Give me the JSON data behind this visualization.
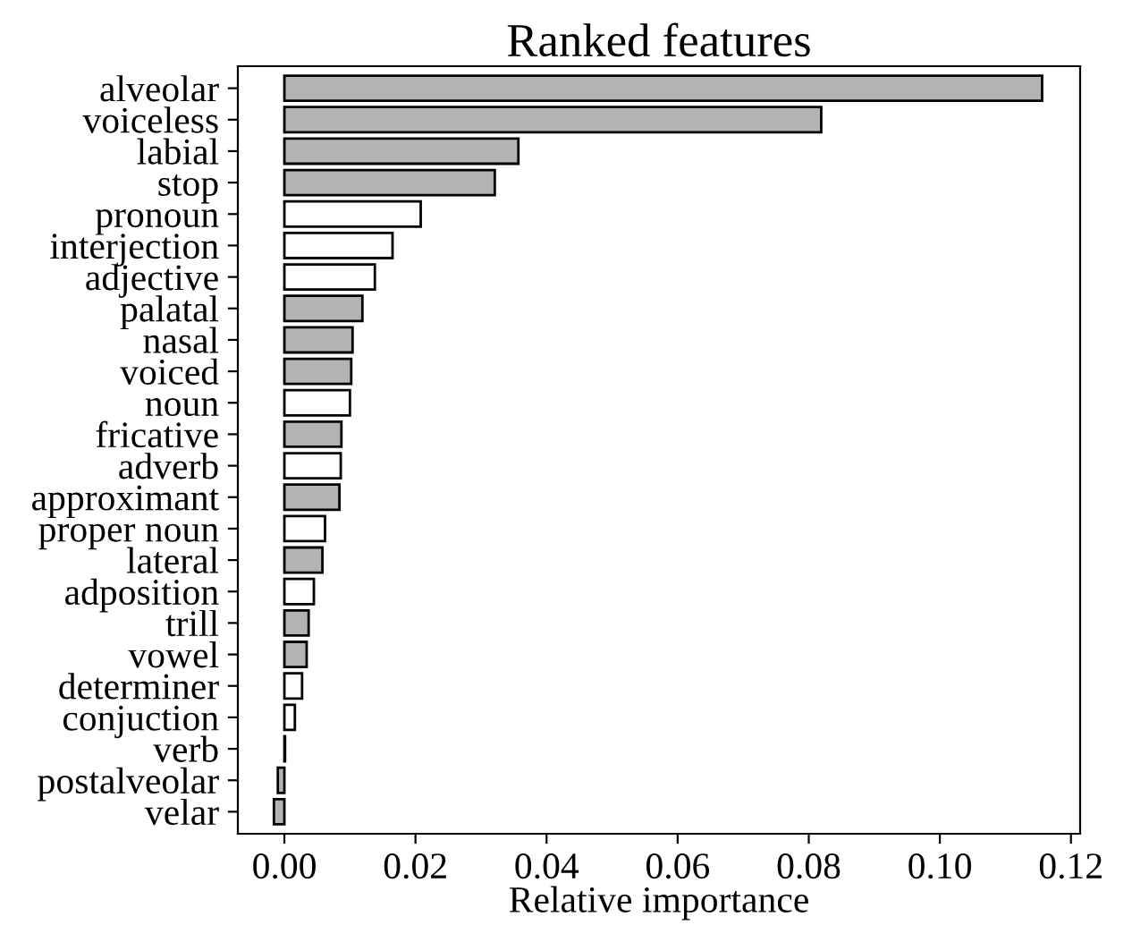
{
  "chart_data": {
    "type": "bar",
    "orientation": "horizontal",
    "title": "Ranked features",
    "xlabel": "Relative importance",
    "categories": [
      "alveolar",
      "voiceless",
      "labial",
      "stop",
      "pronoun",
      "interjection",
      "adjective",
      "palatal",
      "nasal",
      "voiced",
      "noun",
      "fricative",
      "adverb",
      "approximant",
      "proper noun",
      "lateral",
      "adposition",
      "trill",
      "vowel",
      "determiner",
      "conjuction",
      "verb",
      "postalveolar",
      "velar"
    ],
    "values": [
      0.1156,
      0.0819,
      0.0357,
      0.0321,
      0.0208,
      0.0165,
      0.0138,
      0.0119,
      0.0104,
      0.0102,
      0.01,
      0.0087,
      0.0086,
      0.0084,
      0.0062,
      0.0058,
      0.0045,
      0.0037,
      0.0034,
      0.0027,
      0.0016,
      0.0001,
      -0.001,
      -0.0016
    ],
    "colors": [
      "#b3b3b3",
      "#b3b3b3",
      "#b3b3b3",
      "#b3b3b3",
      "#ffffff",
      "#ffffff",
      "#ffffff",
      "#b3b3b3",
      "#b3b3b3",
      "#b3b3b3",
      "#ffffff",
      "#b3b3b3",
      "#ffffff",
      "#b3b3b3",
      "#ffffff",
      "#b3b3b3",
      "#ffffff",
      "#b3b3b3",
      "#b3b3b3",
      "#ffffff",
      "#ffffff",
      "#ffffff",
      "#b3b3b3",
      "#b3b3b3"
    ],
    "xlim": [
      -0.0071,
      0.1214
    ],
    "xticks": [
      {
        "value": 0,
        "label": "0.00"
      },
      {
        "value": 0.02,
        "label": "0.02"
      },
      {
        "value": 0.04,
        "label": "0.04"
      },
      {
        "value": 0.06,
        "label": "0.06"
      },
      {
        "value": 0.08,
        "label": "0.08"
      },
      {
        "value": 0.1,
        "label": "0.10"
      },
      {
        "value": 0.12,
        "label": "0.12"
      }
    ],
    "grid": false
  }
}
